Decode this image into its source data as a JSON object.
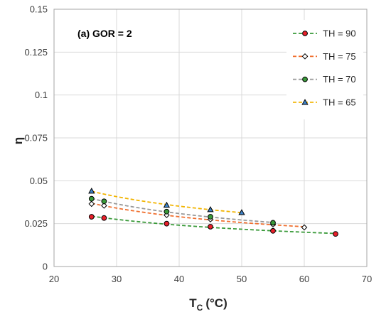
{
  "chart_data": {
    "type": "scatter",
    "annotation": "(a) GOR = 2",
    "xlabel": "T",
    "xlabel_sub": "C",
    "xlabel_unit": "(°C)",
    "ylabel": "η",
    "xlim": [
      20,
      70
    ],
    "ylim": [
      0,
      0.15
    ],
    "xticks": [
      20,
      30,
      40,
      50,
      60,
      70
    ],
    "xtick_labels": [
      "20",
      "30",
      "40",
      "50",
      "60",
      "70"
    ],
    "yticks": [
      0,
      0.025,
      0.05,
      0.075,
      0.1,
      0.125,
      0.15
    ],
    "ytick_labels": [
      "0",
      "0.025",
      "0.05",
      "0.075",
      "0.1",
      "0.125",
      "0.15"
    ],
    "grid": true,
    "legend_position": "top-right",
    "series": [
      {
        "name": "TH = 90",
        "color": "#3a9a3a",
        "marker": "circle",
        "marker_fill": "#e8202a",
        "x": [
          26,
          28,
          38,
          45,
          55,
          65
        ],
        "y": [
          0.029,
          0.0283,
          0.025,
          0.0232,
          0.0208,
          0.019
        ]
      },
      {
        "name": "TH = 75",
        "color": "#f07030",
        "marker": "diamond",
        "marker_fill": "#ffffff",
        "x": [
          26,
          28,
          38,
          45,
          55,
          60
        ],
        "y": [
          0.0365,
          0.0355,
          0.03,
          0.0275,
          0.0245,
          0.0228
        ]
      },
      {
        "name": "TH = 70",
        "color": "#999999",
        "marker": "circle",
        "marker_fill": "#3a9a3a",
        "x": [
          26,
          28,
          38,
          45,
          55
        ],
        "y": [
          0.0395,
          0.038,
          0.032,
          0.029,
          0.0255
        ]
      },
      {
        "name": "TH = 65",
        "color": "#f2b400",
        "marker": "triangle",
        "marker_fill": "#3f83c8",
        "x": [
          26,
          38,
          45,
          50
        ],
        "y": [
          0.044,
          0.0358,
          0.0332,
          0.0315
        ]
      }
    ]
  }
}
